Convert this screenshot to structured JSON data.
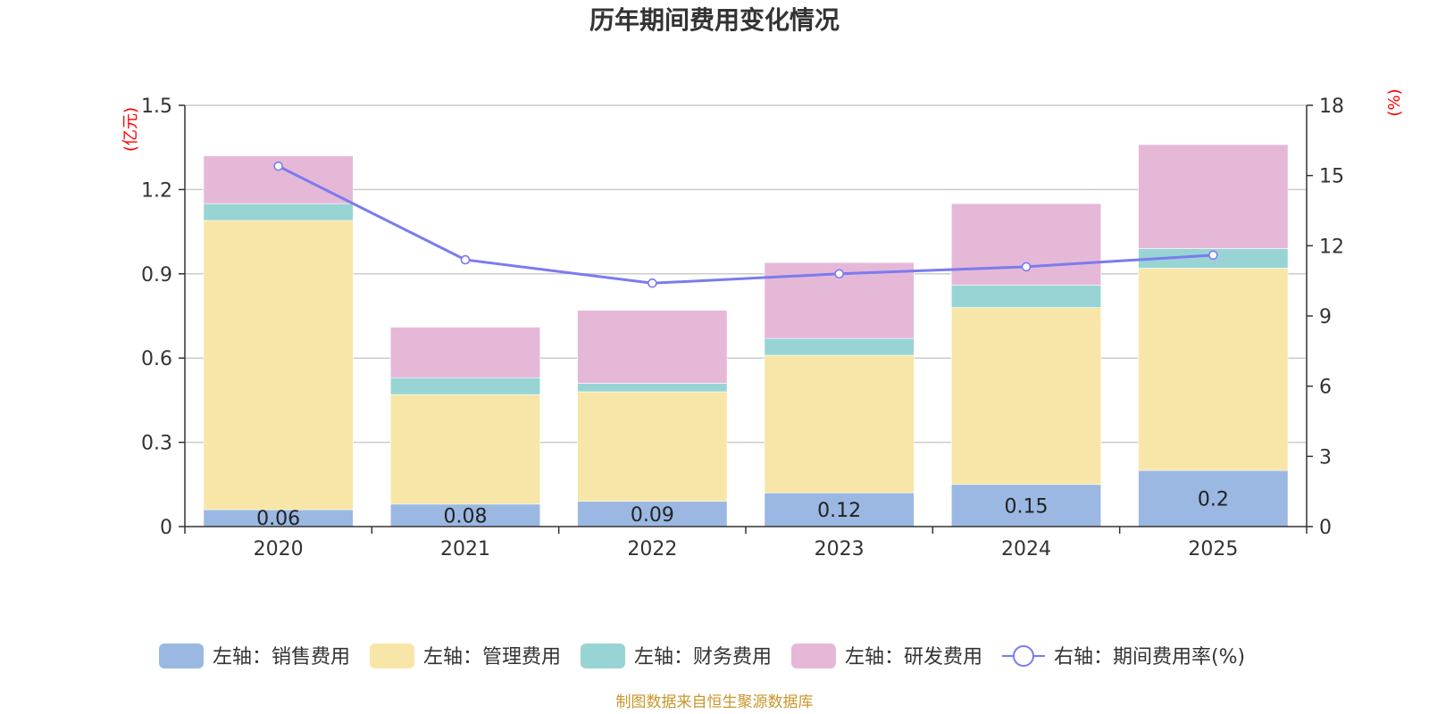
{
  "chart_data": {
    "type": "bar",
    "stacked": true,
    "title": "历年期间费用变化情况",
    "categories": [
      "2020",
      "2021",
      "2022",
      "2023",
      "2024",
      "2025"
    ],
    "left_axis": {
      "unit": "(亿元)",
      "ylim": [
        0,
        1.5
      ],
      "ticks": [
        0,
        0.3,
        0.6,
        0.9,
        1.2,
        1.5
      ],
      "tick_labels": [
        "0",
        "0.3",
        "0.6",
        "0.9",
        "1.2",
        "1.5"
      ]
    },
    "right_axis": {
      "unit": "(%)",
      "ylim": [
        0,
        18
      ],
      "ticks": [
        0,
        3,
        6,
        9,
        12,
        15,
        18
      ],
      "tick_labels": [
        "0",
        "3",
        "6",
        "9",
        "12",
        "15",
        "18"
      ]
    },
    "series": [
      {
        "name": "左轴：销售费用",
        "type": "bar",
        "axis": "left",
        "color": "#9bb8e2",
        "values": [
          0.06,
          0.08,
          0.09,
          0.12,
          0.15,
          0.2
        ],
        "labels": [
          "0.06",
          "0.08",
          "0.09",
          "0.12",
          "0.15",
          "0.2"
        ]
      },
      {
        "name": "左轴：管理费用",
        "type": "bar",
        "axis": "left",
        "color": "#f7e6a7",
        "values": [
          1.03,
          0.39,
          0.39,
          0.49,
          0.63,
          0.72
        ]
      },
      {
        "name": "左轴：财务费用",
        "type": "bar",
        "axis": "left",
        "color": "#98d4d4",
        "values": [
          0.06,
          0.06,
          0.03,
          0.06,
          0.08,
          0.07
        ]
      },
      {
        "name": "左轴：研发费用",
        "type": "bar",
        "axis": "left",
        "color": "#e6b8d8",
        "values": [
          0.17,
          0.18,
          0.26,
          0.27,
          0.29,
          0.37
        ]
      },
      {
        "name": "右轴：期间费用率(%)",
        "type": "line",
        "axis": "right",
        "color": "#7b7bef",
        "values": [
          15.4,
          11.4,
          10.4,
          10.8,
          11.1,
          11.6
        ]
      }
    ],
    "grid": true,
    "legend_position": "bottom"
  },
  "source_note": "制图数据来自恒生聚源数据库"
}
